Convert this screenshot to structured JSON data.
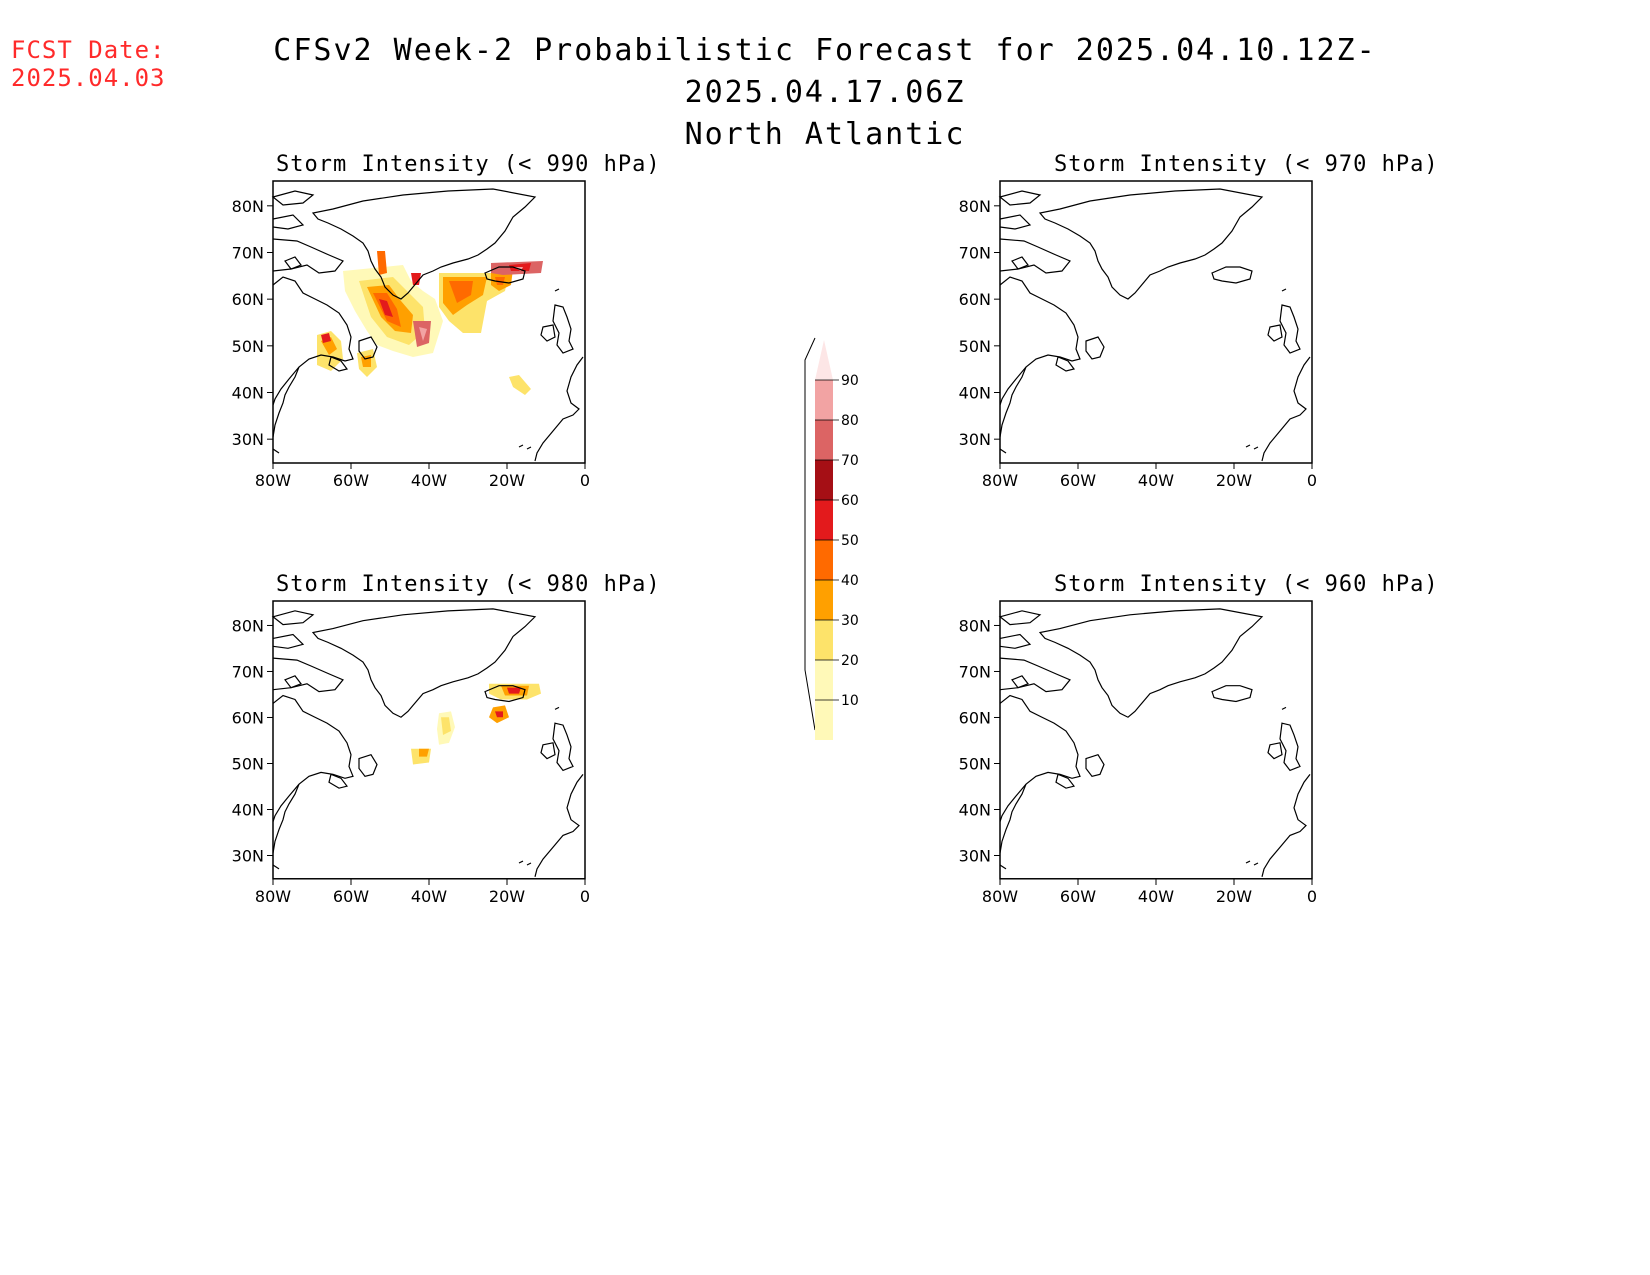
{
  "header": {
    "fcst_label": "FCST Date:",
    "fcst_date": "2025.04.03",
    "title_line1": "CFSv2 Week-2 Probabilistic Forecast for 2025.04.10.12Z-2025.04.17.06Z",
    "title_line2": "North Atlantic"
  },
  "axes": {
    "lat_labels": [
      "80N",
      "70N",
      "60N",
      "50N",
      "40N",
      "30N"
    ],
    "lon_labels": [
      "80W",
      "60W",
      "40W",
      "20W",
      "0"
    ]
  },
  "panels": [
    {
      "title": "Storm Intensity (< 990 hPa)"
    },
    {
      "title": "Storm Intensity (< 970 hPa)"
    },
    {
      "title": "Storm Intensity (< 980 hPa)"
    },
    {
      "title": "Storm Intensity (< 960 hPa)"
    }
  ],
  "colorbar": {
    "labels": [
      "90",
      "80",
      "70",
      "60",
      "50",
      "40",
      "30",
      "20",
      "10"
    ],
    "colors": [
      "#fde6e6",
      "#f2a3a3",
      "#dc6464",
      "#a50f15",
      "#e31a1c",
      "#ff6a00",
      "#ffa000",
      "#fde36a",
      "#fff9b8"
    ]
  }
}
